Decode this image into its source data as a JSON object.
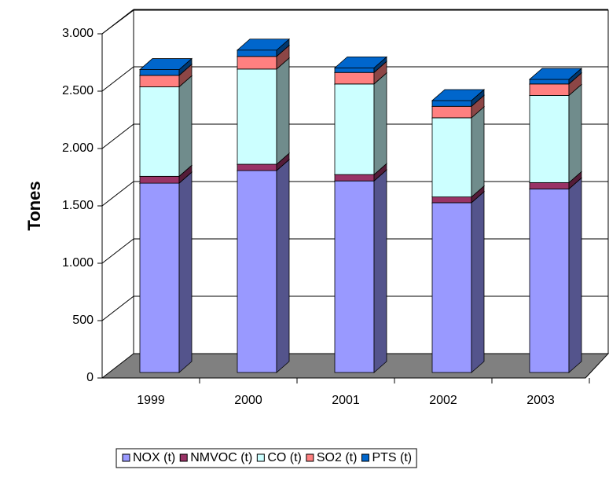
{
  "chart_data": {
    "type": "bar",
    "stacked": true,
    "y_label": "Tones",
    "categories": [
      "1999",
      "2000",
      "2001",
      "2002",
      "2003"
    ],
    "series": [
      {
        "name": "NOX (t)",
        "color": "#9999ff",
        "values": [
          1650,
          1760,
          1670,
          1480,
          1600
        ]
      },
      {
        "name": "NMVOC (t)",
        "color": "#993366",
        "values": [
          60,
          55,
          55,
          50,
          55
        ]
      },
      {
        "name": "CO (t)",
        "color": "#ccffff",
        "values": [
          780,
          830,
          790,
          690,
          760
        ]
      },
      {
        "name": "SO2 (t)",
        "color": "#ff8080",
        "values": [
          100,
          110,
          100,
          100,
          100
        ]
      },
      {
        "name": "PTS (t)",
        "color": "#0066cc",
        "values": [
          50,
          55,
          40,
          50,
          40
        ]
      }
    ],
    "ylim": [
      0,
      3000
    ],
    "yticks": [
      0,
      500,
      {
        "value": 1000,
        "label": "1.000"
      },
      {
        "value": 1500,
        "label": "1.500"
      },
      {
        "value": 2000,
        "label": "2.000"
      },
      {
        "value": 2500,
        "label": "2.500"
      },
      {
        "value": 3000,
        "label": "3.000"
      }
    ],
    "grid": true,
    "legend": "bottom"
  }
}
